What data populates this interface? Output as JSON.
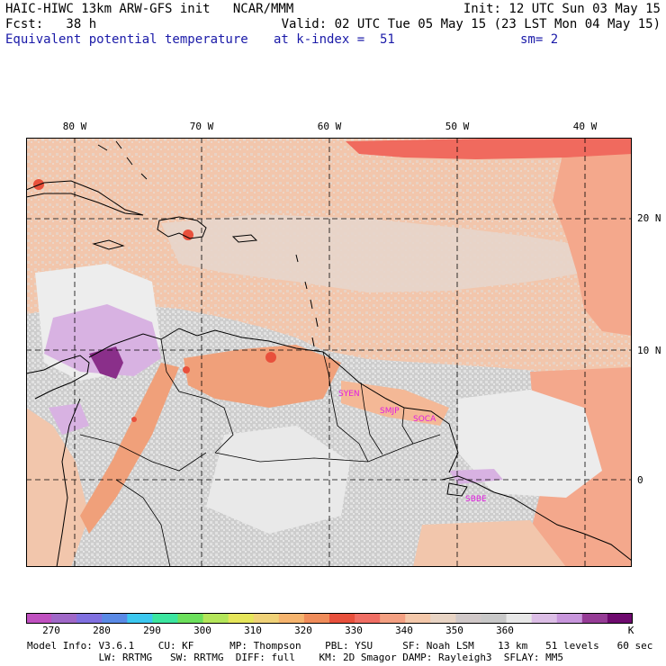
{
  "header": {
    "model_line": "HAIC-HIWC 13km ARW-GFS init   NCAR/MMM",
    "init_line": "Init: 12 UTC Sun 03 May 15",
    "fcst_line": "Fcst:   38 h",
    "valid_line": "Valid: 02 UTC Tue 05 May 15 (23 LST Mon 04 May 15)",
    "field_name": "Equivalent potential temperature",
    "level_text": "at k-index =  51",
    "smooth_text": "sm= 2"
  },
  "map": {
    "lon_labels": [
      "80 W",
      "70 W",
      "60 W",
      "50 W",
      "40 W"
    ],
    "lat_labels": [
      "20 N",
      "10 N",
      "0"
    ],
    "station_labels": [
      "SYEN",
      "SMJP",
      "SOCA",
      "SBBE"
    ],
    "station_color": "#e020e0",
    "grid_style": "dashed",
    "coastline_color": "#000000"
  },
  "colorbar": {
    "ticks": [
      "270",
      "280",
      "290",
      "300",
      "310",
      "320",
      "330",
      "340",
      "350",
      "360"
    ],
    "unit": "K",
    "colors": [
      "#c050c0",
      "#a068c8",
      "#8070e0",
      "#5a8ae6",
      "#3cc8f0",
      "#3ce6a0",
      "#6ce05c",
      "#b4e65a",
      "#e6e65a",
      "#f0d278",
      "#f6b46e",
      "#f08c5a",
      "#e8503c",
      "#f06e64",
      "#f4a082",
      "#f4c8aa",
      "#e8d4c4",
      "#d0c8c8",
      "#c8c8c8",
      "#e8e8e8",
      "#dcbee6",
      "#c896dc",
      "#963c96",
      "#6e0a6e"
    ]
  },
  "model_info": {
    "line1": "Model Info: V3.6.1    CU: KF      MP: Thompson    PBL: YSU     SF: Noah LSM    13 km   51 levels   60 sec",
    "line2": "            LW: RRTMG   SW: RRTMG  DIFF: full    KM: 2D Smagor DAMP: Rayleigh3  SFLAY: MM5"
  }
}
